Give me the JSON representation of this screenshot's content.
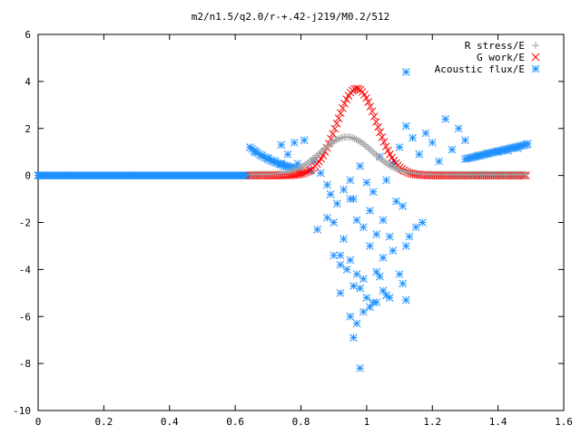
{
  "chart_data": {
    "type": "scatter",
    "title": "m2/n1.5/q2.0/r-+.42-j219/M0.2/512",
    "xlabel": "",
    "ylabel": "",
    "xlim": [
      0,
      1.6
    ],
    "ylim": [
      -10,
      6
    ],
    "x_ticks": [
      0,
      0.2,
      0.4,
      0.6,
      0.8,
      1,
      1.2,
      1.4,
      1.6
    ],
    "x_tick_labels": [
      "0",
      "0.2",
      "0.4",
      "0.6",
      "0.8",
      "1",
      "1.2",
      "1.4",
      "1.6"
    ],
    "y_ticks": [
      -10,
      -8,
      -6,
      -4,
      -2,
      0,
      2,
      4,
      6
    ],
    "y_tick_labels": [
      "-10",
      "-8",
      "-6",
      "-4",
      "-2",
      "0",
      "2",
      "4",
      "6"
    ],
    "grid": false,
    "legend_position": "top-right",
    "series": [
      {
        "name": "R stress/E",
        "marker": "plus",
        "color": "#a0a0a0",
        "x": [
          0.65,
          0.7,
          0.75,
          0.8,
          0.84,
          0.88,
          0.92,
          0.95,
          0.98,
          1.02,
          1.06,
          1.1,
          1.15,
          1.2,
          1.25,
          1.3,
          1.35,
          1.4,
          1.45,
          1.49
        ],
        "y": [
          0.05,
          0.25,
          0.45,
          0.65,
          0.9,
          1.25,
          1.5,
          1.6,
          1.45,
          1.15,
          0.85,
          0.6,
          0.4,
          0.3,
          0.2,
          0.15,
          0.1,
          0.08,
          0.05,
          0.04
        ]
      },
      {
        "name": "G work/E",
        "marker": "cross",
        "color": "#ff0000",
        "x": [
          0.65,
          0.7,
          0.75,
          0.8,
          0.84,
          0.87,
          0.9,
          0.93,
          0.95,
          0.97,
          0.99,
          1.01,
          1.04,
          1.07,
          1.1,
          1.15,
          1.2,
          1.25,
          1.3,
          1.35,
          1.4,
          1.45,
          1.49
        ],
        "y": [
          0.0,
          0.05,
          0.15,
          0.45,
          1.0,
          1.7,
          2.5,
          3.2,
          3.6,
          3.7,
          3.55,
          3.2,
          2.6,
          2.0,
          1.5,
          0.9,
          0.55,
          0.35,
          0.2,
          0.12,
          0.08,
          0.05,
          0.03
        ]
      },
      {
        "name": "Acoustic flux/E",
        "marker": "star",
        "color": "#1e90ff",
        "x": [
          0.0,
          0.1,
          0.2,
          0.3,
          0.4,
          0.5,
          0.6,
          0.64,
          0.645,
          0.66,
          0.68,
          0.7,
          0.72,
          0.74,
          0.76,
          0.78,
          1.34,
          1.37,
          1.4,
          1.43,
          1.46,
          1.49,
          0.74,
          0.76,
          0.78,
          0.79,
          0.81,
          0.83,
          0.84,
          0.86,
          0.88,
          0.89,
          0.91,
          0.93,
          0.95,
          0.96,
          0.98,
          1.0,
          1.02,
          1.04,
          1.06,
          1.08,
          1.1,
          1.12,
          1.14,
          1.16,
          1.18,
          1.2,
          1.22,
          1.24,
          1.26,
          1.28,
          1.3,
          0.85,
          0.88,
          0.9,
          0.92,
          0.93,
          0.95,
          0.97,
          0.99,
          1.01,
          1.03,
          1.05,
          1.07,
          1.09,
          1.11,
          1.13,
          1.15,
          1.17,
          0.95,
          0.97,
          0.99,
          1.01,
          1.03,
          1.05,
          0.9,
          0.92,
          0.94,
          0.96,
          0.98,
          1.0,
          1.02,
          1.04,
          1.06,
          1.08,
          1.1,
          1.12,
          0.92,
          0.95,
          0.97,
          0.99,
          1.01,
          1.03,
          1.05,
          1.07,
          1.11,
          1.12,
          0.96,
          0.98
        ],
        "y": [
          0.0,
          0.0,
          0.0,
          0.0,
          0.0,
          0.0,
          0.0,
          0.0,
          1.2,
          1.0,
          0.85,
          0.75,
          0.62,
          0.5,
          0.4,
          0.3,
          0.85,
          0.95,
          1.0,
          1.05,
          1.15,
          1.35,
          1.3,
          0.9,
          1.4,
          0.5,
          1.5,
          0.2,
          0.6,
          0.1,
          -0.4,
          -0.8,
          -1.2,
          -0.6,
          -0.2,
          -1.0,
          0.4,
          -0.3,
          -0.7,
          0.8,
          -0.2,
          0.5,
          1.2,
          2.1,
          1.6,
          0.9,
          1.8,
          1.4,
          0.6,
          2.4,
          1.1,
          2.0,
          1.5,
          -2.3,
          -1.8,
          -2.0,
          -3.4,
          -2.7,
          -1.0,
          -1.9,
          -2.2,
          -1.5,
          -2.5,
          -1.9,
          -2.6,
          -1.1,
          -1.3,
          -2.6,
          -2.2,
          -2.0,
          -3.6,
          -4.2,
          -4.4,
          -3.0,
          -4.1,
          -3.5,
          -3.4,
          -3.8,
          -4.0,
          -4.7,
          -4.8,
          -5.2,
          -5.4,
          -4.3,
          -5.1,
          -3.2,
          -4.2,
          -3.0,
          -5.0,
          -6.0,
          -6.3,
          -5.8,
          -5.6,
          -5.4,
          -4.9,
          -5.2,
          -4.6,
          -5.3,
          -6.9,
          -8.2
        ],
        "legend_only_extra": [
          {
            "x": 1.12,
            "y": 4.4
          }
        ]
      }
    ]
  }
}
